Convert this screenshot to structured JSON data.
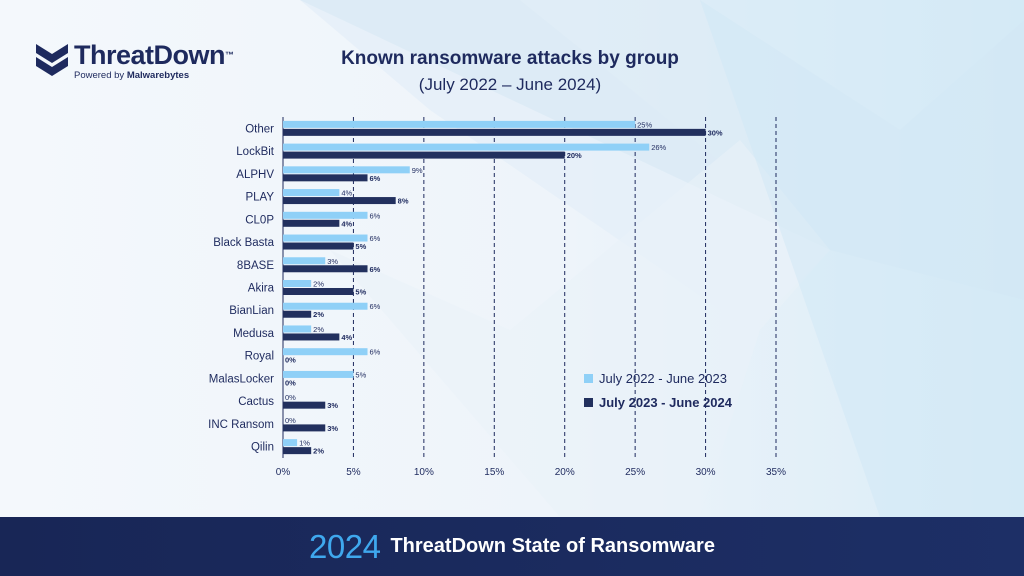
{
  "brand": {
    "name": "ThreatDown",
    "trademark": "™",
    "powered_by": "Powered by",
    "parent": "Malwarebytes",
    "colors": {
      "navy": "#1e2a5e",
      "light_blue": "#8fd0f7",
      "dark_navy": "#22305e",
      "accent": "#3fa8ee"
    }
  },
  "footer": {
    "year": "2024",
    "title": "ThreatDown State of Ransomware"
  },
  "chart_data": {
    "type": "bar",
    "orientation": "horizontal",
    "title": "Known ransomware attacks by group",
    "subtitle": "(July 2022 – June 2024)",
    "categories": [
      "Other",
      "LockBit",
      "ALPHV",
      "PLAY",
      "CL0P",
      "Black Basta",
      "8BASE",
      "Akira",
      "BianLian",
      "Medusa",
      "Royal",
      "MalasLocker",
      "Cactus",
      "INC Ransom",
      "Qilin"
    ],
    "series": [
      {
        "name": "July 2022 - June 2023",
        "color": "#8fd0f7",
        "bold": false,
        "values": [
          25,
          26,
          9,
          4,
          6,
          6,
          3,
          2,
          6,
          2,
          6,
          5,
          0,
          0,
          1
        ]
      },
      {
        "name": "July 2023 - June 2024",
        "color": "#22305e",
        "bold": true,
        "values": [
          30,
          20,
          6,
          8,
          4,
          5,
          6,
          5,
          2,
          4,
          0,
          0,
          3,
          3,
          2
        ]
      }
    ],
    "xlim": [
      0,
      35
    ],
    "xticks": [
      0,
      5,
      10,
      15,
      20,
      25,
      30,
      35
    ],
    "tick_suffix": "%",
    "label_suffix": "%",
    "grid": "vertical dashed",
    "legend_position": "bottom-right"
  }
}
